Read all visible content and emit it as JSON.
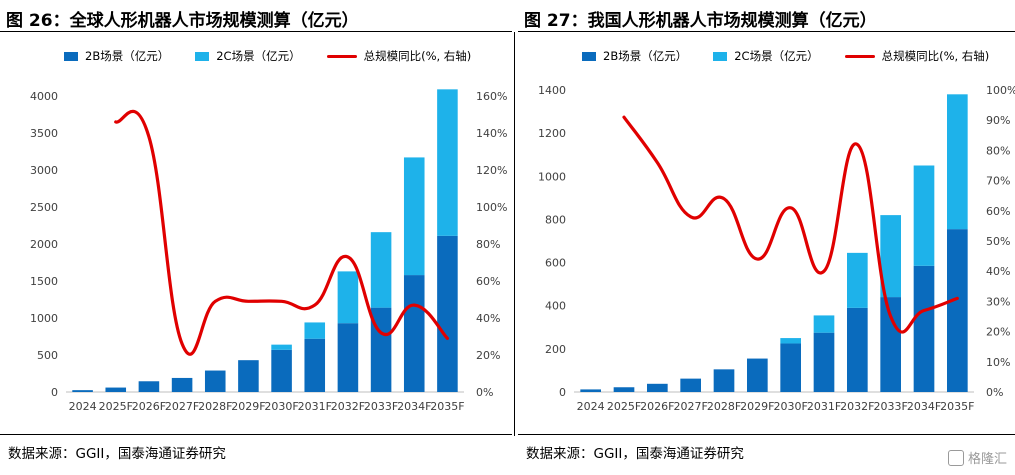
{
  "colors": {
    "b2b": "#0a6bbd",
    "b2c": "#1eb2ea",
    "line": "#e00000",
    "axis": "#7f7f7f"
  },
  "watermark": {
    "text": "格隆汇"
  },
  "charts": [
    {
      "title": "图 26：全球人形机器人市场规模测算（亿元）",
      "source": "数据来源：GGII，国泰海通证券研究",
      "legend": [
        "2B场景（亿元）",
        "2C场景（亿元）",
        "总规模同比(%, 右轴)"
      ]
    },
    {
      "title": "图 27：我国人形机器人市场规模测算（亿元）",
      "source": "数据来源：GGII，国泰海通证券研究",
      "legend": [
        "2B场景（亿元）",
        "2C场景（亿元）",
        "总规模同比(%, 右轴)"
      ]
    }
  ],
  "chart_data": [
    {
      "type": "bar",
      "stacked": true,
      "categories": [
        "2024",
        "2025F",
        "2026F",
        "2027F",
        "2028F",
        "2029F",
        "2030F",
        "2031F",
        "2032F",
        "2033F",
        "2034F",
        "2035F"
      ],
      "series": [
        {
          "name": "2B场景（亿元）",
          "type": "bar",
          "axis": "left",
          "values": [
            25,
            60,
            145,
            190,
            290,
            430,
            570,
            720,
            930,
            1140,
            1580,
            2110
          ]
        },
        {
          "name": "2C场景（亿元）",
          "type": "bar",
          "axis": "left",
          "values": [
            0,
            0,
            0,
            0,
            0,
            0,
            70,
            220,
            700,
            1020,
            1590,
            1980
          ]
        },
        {
          "name": "总规模同比(%, 右轴)",
          "type": "line",
          "axis": "right",
          "values": [
            null,
            146,
            138,
            26,
            49,
            49,
            49,
            47,
            73,
            32,
            47,
            29
          ]
        }
      ],
      "y_left": {
        "min": 0,
        "max": 4000,
        "step": 500,
        "ticks": [
          "0",
          "500",
          "1000",
          "1500",
          "2000",
          "2500",
          "3000",
          "3500",
          "4000"
        ]
      },
      "y_right": {
        "min": 0,
        "max": 160,
        "step": 20,
        "ticks": [
          "0%",
          "20%",
          "40%",
          "60%",
          "80%",
          "100%",
          "120%",
          "140%",
          "160%"
        ]
      },
      "legend_position": "top"
    },
    {
      "type": "bar",
      "stacked": true,
      "categories": [
        "2024",
        "2025F",
        "2026F",
        "2027F",
        "2028F",
        "2029F",
        "2030F",
        "2031F",
        "2032F",
        "2033F",
        "2034F",
        "2035F"
      ],
      "series": [
        {
          "name": "2B场景（亿元）",
          "type": "bar",
          "axis": "left",
          "values": [
            12,
            22,
            38,
            62,
            105,
            155,
            225,
            275,
            390,
            440,
            585,
            755
          ]
        },
        {
          "name": "2C场景（亿元）",
          "type": "bar",
          "axis": "left",
          "values": [
            0,
            0,
            0,
            0,
            0,
            0,
            25,
            80,
            255,
            380,
            465,
            625
          ]
        },
        {
          "name": "总规模同比(%, 右轴)",
          "type": "line",
          "axis": "right",
          "values": [
            null,
            91,
            76,
            58,
            64,
            44,
            61,
            40,
            82,
            25,
            27,
            31
          ]
        }
      ],
      "y_left": {
        "min": 0,
        "max": 1400,
        "step": 200,
        "ticks": [
          "0",
          "200",
          "400",
          "600",
          "800",
          "1000",
          "1200",
          "1400"
        ]
      },
      "y_right": {
        "min": 0,
        "max": 100,
        "step": 10,
        "ticks": [
          "0%",
          "10%",
          "20%",
          "30%",
          "40%",
          "50%",
          "60%",
          "70%",
          "80%",
          "90%",
          "100%"
        ]
      },
      "legend_position": "top"
    }
  ]
}
